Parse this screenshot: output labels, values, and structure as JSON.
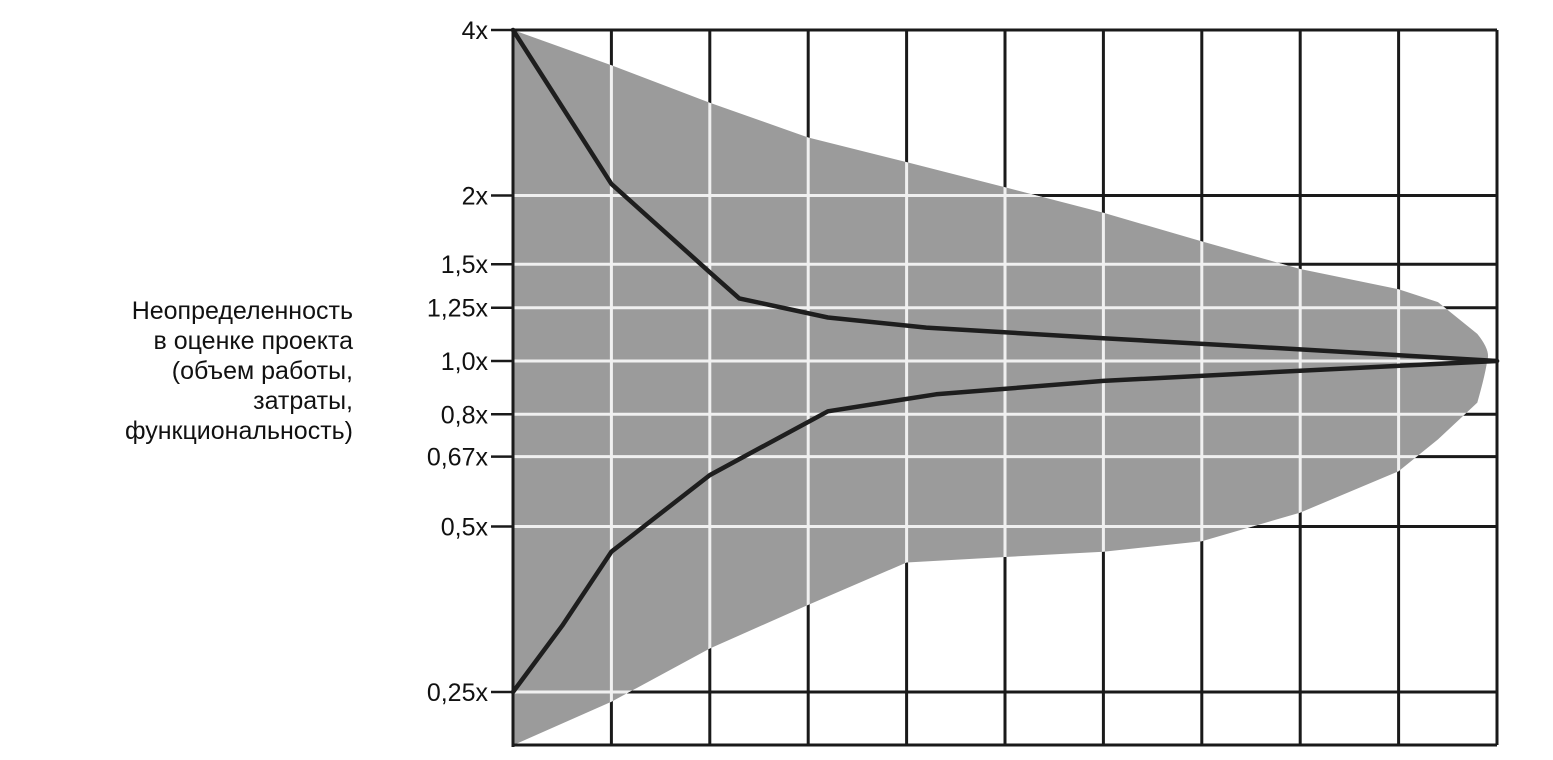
{
  "chart_data": {
    "type": "line",
    "title": "",
    "xlabel": "",
    "ylabel_lines": [
      "Неопределенность",
      "в оценке проекта",
      "(объем работы,",
      "затраты,",
      "функциональность)"
    ],
    "y_scale": "log",
    "y_ticks": [
      {
        "value": 4,
        "label": "4x"
      },
      {
        "value": 2,
        "label": "2x"
      },
      {
        "value": 1.5,
        "label": "1,5x"
      },
      {
        "value": 1.25,
        "label": "1,25x"
      },
      {
        "value": 1.0,
        "label": "1,0x"
      },
      {
        "value": 0.8,
        "label": "0,8x"
      },
      {
        "value": 0.67,
        "label": "0,67x"
      },
      {
        "value": 0.5,
        "label": "0,5x"
      },
      {
        "value": 0.25,
        "label": "0,25x"
      }
    ],
    "x_divisions": 10,
    "grid": true,
    "series": [
      {
        "x": [
          0,
          1,
          2,
          2.3,
          3.2,
          4.2,
          6,
          8,
          10
        ],
        "values": [
          4,
          2.1,
          1.45,
          1.3,
          1.2,
          1.15,
          1.1,
          1.05,
          1.0
        ]
      },
      {
        "x": [
          0,
          0.5,
          1,
          2,
          3.2,
          4.3,
          6,
          8,
          10
        ],
        "values": [
          0.25,
          0.33,
          0.45,
          0.62,
          0.81,
          0.87,
          0.92,
          0.96,
          1.0
        ]
      }
    ],
    "band": {
      "x": [
        0,
        1,
        2,
        3,
        4,
        5,
        6,
        7,
        8,
        9,
        9.4,
        9.8
      ],
      "upper": [
        4,
        3.45,
        2.95,
        2.55,
        2.3,
        2.07,
        1.86,
        1.65,
        1.47,
        1.35,
        1.28,
        1.12
      ],
      "lower": [
        0.2,
        0.24,
        0.3,
        0.36,
        0.43,
        0.44,
        0.45,
        0.47,
        0.53,
        0.63,
        0.72,
        0.84
      ]
    },
    "colors": {
      "band": "#9b9b9b",
      "curve": "#1e1e1e",
      "grid_light": "#f0f0f0",
      "grid_dark": "#1a1a1a",
      "text": "#111111"
    }
  }
}
